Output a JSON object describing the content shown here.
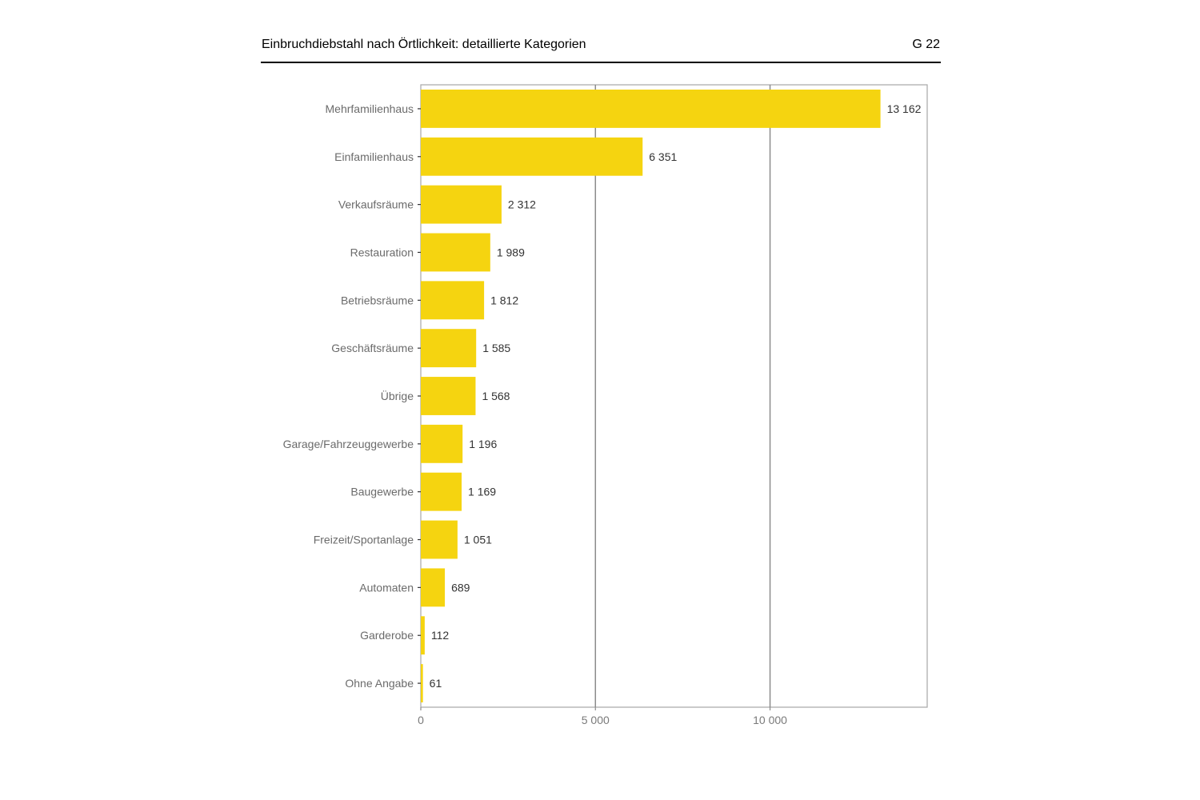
{
  "header": {
    "title": "Einbruchdiebstahl nach Örtlichkeit: detaillierte Kategorien",
    "code": "G 22"
  },
  "chart_data": {
    "type": "bar",
    "orientation": "horizontal",
    "title": "Einbruchdiebstahl nach Örtlichkeit: detaillierte Kategorien",
    "categories": [
      "Mehrfamilienhaus",
      "Einfamilienhaus",
      "Verkaufsräume",
      "Restauration",
      "Betriebsräume",
      "Geschäftsräume",
      "Übrige",
      "Garage/Fahrzeuggewerbe",
      "Baugewerbe",
      "Freizeit/Sportanlage",
      "Automaten",
      "Garderobe",
      "Ohne Angabe"
    ],
    "values": [
      13162,
      6351,
      2312,
      1989,
      1812,
      1585,
      1568,
      1196,
      1169,
      1051,
      689,
      112,
      61
    ],
    "value_labels": [
      "13 162",
      "6 351",
      "2 312",
      "1 989",
      "1 812",
      "1 585",
      "1 568",
      "1 196",
      "1 169",
      "1 051",
      "689",
      "112",
      "61"
    ],
    "xticks": [
      0,
      5000,
      10000
    ],
    "xtick_labels": [
      "0",
      "5 000",
      "10 000"
    ],
    "xlim": [
      0,
      14500
    ],
    "grid": "vertical major lines",
    "legend": "none",
    "bar_color": "#f5d410"
  }
}
